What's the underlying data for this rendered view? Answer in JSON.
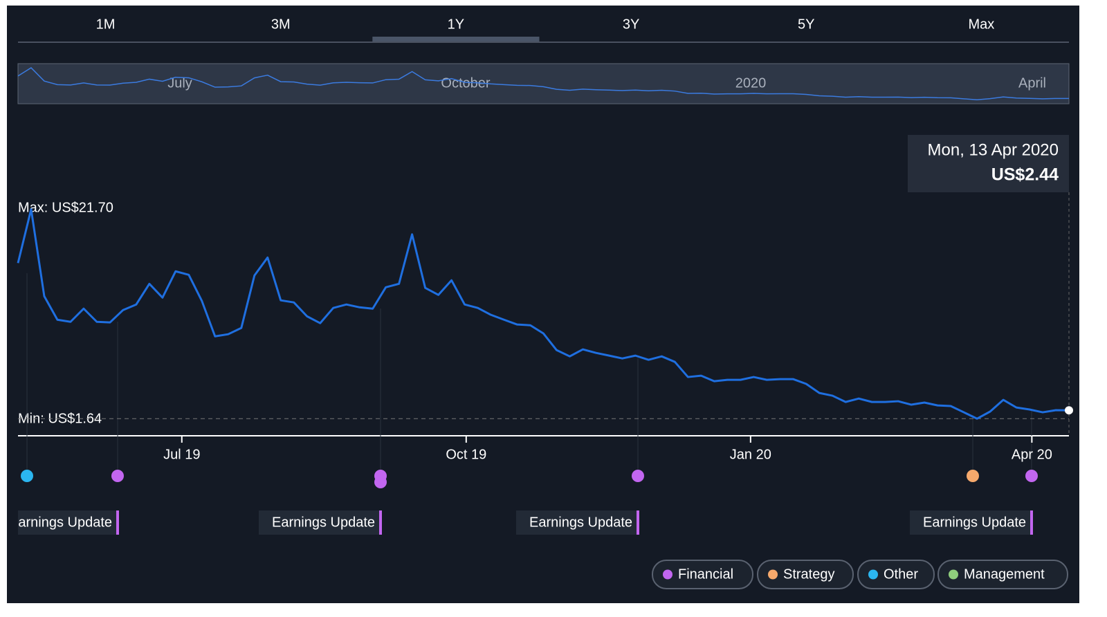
{
  "tabs": {
    "items": [
      "1M",
      "3M",
      "1Y",
      "3Y",
      "5Y",
      "Max"
    ],
    "selected": "1Y"
  },
  "navigator": {
    "labels": [
      "July",
      "October",
      "2020",
      "April"
    ]
  },
  "tooltip": {
    "date": "Mon, 13 Apr 2020",
    "price": "US$2.44"
  },
  "max_label": "Max: US$21.70",
  "min_label": "Min: US$1.64",
  "event_labels": [
    "Earnings Update",
    "Earnings Update",
    "Earnings Update",
    "Earnings Update"
  ],
  "legend": [
    {
      "name": "Financial",
      "color": "#c266f0"
    },
    {
      "name": "Strategy",
      "color": "#f6a96c"
    },
    {
      "name": "Other",
      "color": "#2bb6f0"
    },
    {
      "name": "Management",
      "color": "#8fce7c"
    }
  ],
  "chart_data": {
    "type": "line",
    "color": "#1f6fe0",
    "xlim": [
      "2019-05-09",
      "2020-04-13"
    ],
    "xticks": [
      {
        "value": "2019-07-01",
        "label": "Jul 19"
      },
      {
        "value": "2019-10-01",
        "label": "Oct 19"
      },
      {
        "value": "2020-01-01",
        "label": "Jan 20"
      },
      {
        "value": "2020-04-01",
        "label": "Apr 20"
      }
    ],
    "ylim": [
      0,
      23
    ],
    "values": [
      16.55,
      21.7,
      13.37,
      11.12,
      10.92,
      12.18,
      10.92,
      10.86,
      12.05,
      12.58,
      14.56,
      13.24,
      15.76,
      15.42,
      12.91,
      9.53,
      9.73,
      10.33,
      15.36,
      17.08,
      12.98,
      12.78,
      11.45,
      10.79,
      12.25,
      12.58,
      12.31,
      12.18,
      14.23,
      14.56,
      19.3,
      14.17,
      13.5,
      14.9,
      12.58,
      12.25,
      11.59,
      11.12,
      10.66,
      10.59,
      9.8,
      8.21,
      7.61,
      8.28,
      7.94,
      7.68,
      7.41,
      7.68,
      7.28,
      7.61,
      7.08,
      5.63,
      5.76,
      5.23,
      5.36,
      5.36,
      5.63,
      5.36,
      5.43,
      5.43,
      4.97,
      4.1,
      3.84,
      3.24,
      3.57,
      3.24,
      3.24,
      3.31,
      2.98,
      3.18,
      2.91,
      2.85,
      2.25,
      1.64,
      2.32,
      3.44,
      2.71,
      2.52,
      2.25,
      2.45,
      2.44
    ]
  }
}
